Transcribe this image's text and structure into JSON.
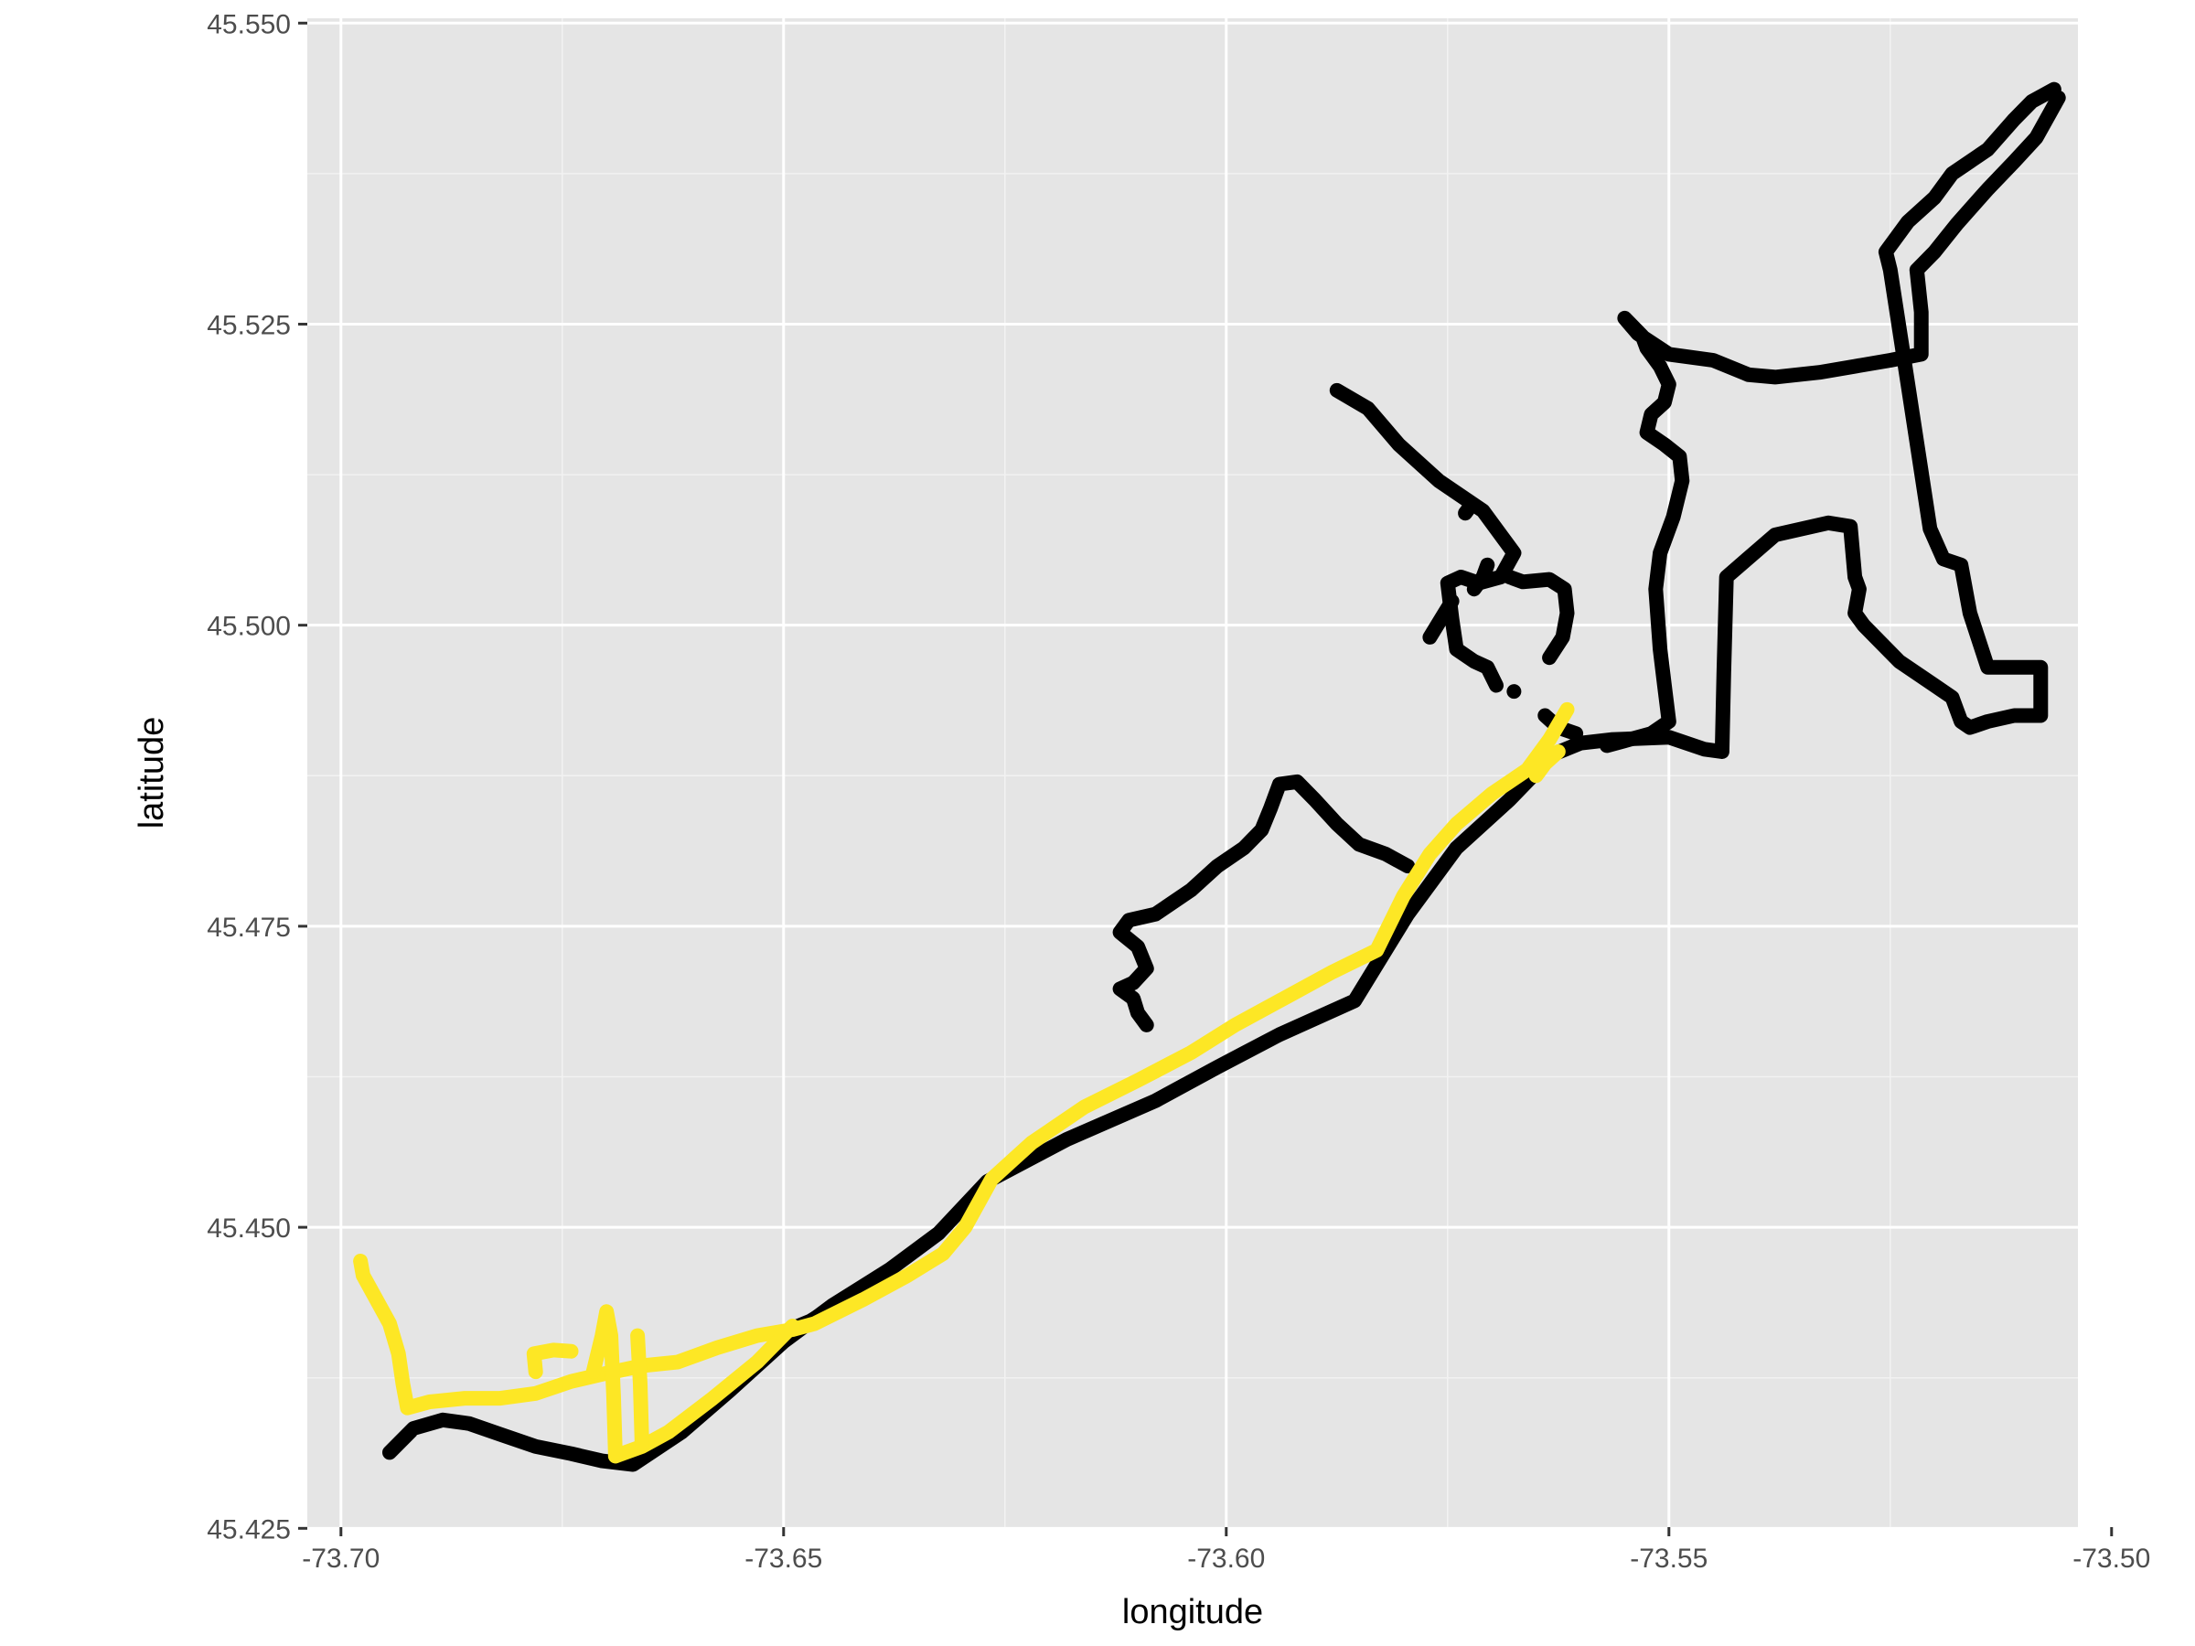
{
  "chart_data": {
    "type": "line",
    "title": "",
    "xlabel": "longitude",
    "ylabel": "latitude",
    "xlim": [
      -73.7038,
      -73.5038
    ],
    "ylim": [
      45.4251,
      45.5504
    ],
    "x_ticks": [
      -73.7,
      -73.65,
      -73.6,
      -73.55,
      -73.5
    ],
    "x_tick_labels": [
      "-73.70",
      "-73.65",
      "-73.60",
      "-73.55",
      "-73.50"
    ],
    "y_ticks": [
      45.425,
      45.45,
      45.475,
      45.5,
      45.525,
      45.55
    ],
    "y_tick_labels": [
      "45.425",
      "45.450",
      "45.475",
      "45.500",
      "45.525",
      "45.550"
    ],
    "grid": true,
    "background": "#e5e5e5",
    "gridline_color": "#ffffff",
    "legend": "none",
    "series": [
      {
        "color": "#000000",
        "segments": [
          [
            [
              -73.6945,
              45.4313
            ],
            [
              -73.6918,
              45.4333
            ],
            [
              -73.6885,
              45.434
            ],
            [
              -73.6855,
              45.4337
            ],
            [
              -73.682,
              45.4328
            ],
            [
              -73.678,
              45.4318
            ],
            [
              -73.674,
              45.4312
            ],
            [
              -73.6705,
              45.4306
            ],
            [
              -73.667,
              45.4303
            ],
            [
              -73.6615,
              45.433
            ],
            [
              -73.656,
              45.4365
            ],
            [
              -73.65,
              45.4405
            ],
            [
              -73.6445,
              45.4435
            ],
            [
              -73.638,
              45.4465
            ],
            [
              -73.6325,
              45.4495
            ],
            [
              -73.627,
              45.4538
            ],
            [
              -73.618,
              45.4573
            ],
            [
              -73.608,
              45.4605
            ],
            [
              -73.601,
              45.4633
            ],
            [
              -73.594,
              45.466
            ],
            [
              -73.5855,
              45.4688
            ],
            [
              -73.5795,
              45.476
            ],
            [
              -73.574,
              45.4815
            ],
            [
              -73.568,
              45.4855
            ],
            [
              -73.563,
              45.4893
            ],
            [
              -73.56,
              45.4902
            ],
            [
              -73.5565,
              45.4905
            ],
            [
              -73.55,
              45.4907
            ],
            [
              -73.546,
              45.4897
            ],
            [
              -73.544,
              45.4895
            ],
            [
              -73.5438,
              45.496
            ],
            [
              -73.5435,
              45.504
            ],
            [
              -73.538,
              45.5075
            ],
            [
              -73.532,
              45.5085
            ],
            [
              -73.5295,
              45.5082
            ],
            [
              -73.529,
              45.504
            ],
            [
              -73.5285,
              45.503
            ],
            [
              -73.529,
              45.501
            ],
            [
              -73.528,
              45.5
            ],
            [
              -73.524,
              45.497
            ],
            [
              -73.52,
              45.495
            ],
            [
              -73.518,
              45.494
            ],
            [
              -73.517,
              45.492
            ],
            [
              -73.516,
              45.4915
            ],
            [
              -73.514,
              45.492
            ],
            [
              -73.511,
              45.4925
            ],
            [
              -73.508,
              45.4925
            ],
            [
              -73.508,
              45.4965
            ],
            [
              -73.511,
              45.4965
            ],
            [
              -73.514,
              45.4965
            ],
            [
              -73.516,
              45.501
            ],
            [
              -73.517,
              45.505
            ],
            [
              -73.519,
              45.5055
            ],
            [
              -73.5205,
              45.508
            ],
            [
              -73.523,
              45.52
            ],
            [
              -73.525,
              45.5295
            ],
            [
              -73.5255,
              45.531
            ],
            [
              -73.523,
              45.5335
            ],
            [
              -73.52,
              45.5355
            ],
            [
              -73.518,
              45.5375
            ],
            [
              -73.514,
              45.5395
            ],
            [
              -73.511,
              45.542
            ],
            [
              -73.509,
              45.5435
            ],
            [
              -73.5065,
              45.5445
            ]
          ],
          [
            [
              -73.506,
              45.5438
            ],
            [
              -73.5085,
              45.5405
            ],
            [
              -73.511,
              45.5385
            ],
            [
              -73.514,
              45.5362
            ],
            [
              -73.5175,
              45.5333
            ],
            [
              -73.52,
              45.531
            ],
            [
              -73.522,
              45.5295
            ],
            [
              -73.5215,
              45.526
            ],
            [
              -73.5215,
              45.5225
            ],
            [
              -73.525,
              45.522
            ],
            [
              -73.529,
              45.5215
            ],
            [
              -73.533,
              45.521
            ],
            [
              -73.538,
              45.5206
            ],
            [
              -73.541,
              45.5208
            ],
            [
              -73.545,
              45.522
            ],
            [
              -73.55,
              45.5225
            ],
            [
              -73.5535,
              45.5242
            ],
            [
              -73.555,
              45.5255
            ],
            [
              -73.553,
              45.524
            ],
            [
              -73.5525,
              45.523
            ],
            [
              -73.551,
              45.5215
            ],
            [
              -73.55,
              45.52
            ],
            [
              -73.5505,
              45.5185
            ],
            [
              -73.552,
              45.5175
            ],
            [
              -73.5525,
              45.516
            ],
            [
              -73.5505,
              45.515
            ],
            [
              -73.5488,
              45.514
            ],
            [
              -73.5485,
              45.512
            ],
            [
              -73.5495,
              45.509
            ],
            [
              -73.551,
              45.506
            ],
            [
              -73.5515,
              45.503
            ],
            [
              -73.551,
              45.498
            ],
            [
              -73.5505,
              45.495
            ],
            [
              -73.55,
              45.492
            ],
            [
              -73.552,
              45.491
            ],
            [
              -73.5545,
              45.4905
            ],
            [
              -73.557,
              45.49
            ]
          ],
          [
            [
              -73.5875,
              45.5195
            ],
            [
              -73.584,
              45.518
            ],
            [
              -73.5805,
              45.515
            ],
            [
              -73.576,
              45.512
            ],
            [
              -73.571,
              45.5095
            ],
            [
              -73.5675,
              45.506
            ],
            [
              -73.569,
              45.504
            ],
            [
              -73.5715,
              45.5035
            ],
            [
              -73.5735,
              45.504
            ],
            [
              -73.575,
              45.5035
            ],
            [
              -73.5745,
              45.5005
            ],
            [
              -73.574,
              45.498
            ],
            [
              -73.572,
              45.497
            ],
            [
              -73.5705,
              45.4965
            ],
            [
              -73.5695,
              45.495
            ]
          ],
          [
            [
              -73.572,
              45.503
            ],
            [
              -73.571,
              45.504
            ],
            [
              -73.5705,
              45.505
            ]
          ],
          [
            [
              -73.5635,
              45.4973
            ],
            [
              -73.562,
              45.499
            ],
            [
              -73.5615,
              45.501
            ],
            [
              -73.5618,
              45.503
            ],
            [
              -73.5635,
              45.5038
            ],
            [
              -73.5665,
              45.5036
            ],
            [
              -73.568,
              45.504
            ]
          ],
          [
            [
              -73.577,
              45.499
            ],
            [
              -73.5755,
              45.5008
            ],
            [
              -73.5745,
              45.502
            ]
          ],
          [
            [
              -73.5675,
              45.4945
            ]
          ],
          [
            [
              -73.573,
              45.5093
            ],
            [
              -73.5725,
              45.5098
            ]
          ],
          [
            [
              -73.564,
              45.4925
            ],
            [
              -73.5625,
              45.4915
            ],
            [
              -73.5605,
              45.491
            ]
          ],
          [
            [
              -73.643,
              45.444
            ],
            [
              -73.647,
              45.4422
            ],
            [
              -73.651,
              45.441
            ]
          ],
          [
            [
              -73.5795,
              45.48
            ],
            [
              -73.582,
              45.481
            ],
            [
              -73.585,
              45.4818
            ],
            [
              -73.5875,
              45.4835
            ],
            [
              -73.59,
              45.4855
            ],
            [
              -73.592,
              45.487
            ],
            [
              -73.594,
              45.4868
            ],
            [
              -73.595,
              45.4848
            ],
            [
              -73.596,
              45.483
            ],
            [
              -73.598,
              45.4815
            ],
            [
              -73.601,
              45.48
            ],
            [
              -73.604,
              45.478
            ],
            [
              -73.608,
              45.476
            ],
            [
              -73.611,
              45.4755
            ],
            [
              -73.612,
              45.4745
            ],
            [
              -73.61,
              45.4733
            ],
            [
              -73.609,
              45.4715
            ],
            [
              -73.6105,
              45.4703
            ],
            [
              -73.612,
              45.4698
            ],
            [
              -73.6105,
              45.469
            ],
            [
              -73.61,
              45.4678
            ],
            [
              -73.609,
              45.4668
            ]
          ]
        ]
      },
      {
        "color": "#fde725",
        "segments": [
          [
            [
              -73.6978,
              45.4472
            ],
            [
              -73.6975,
              45.446
            ],
            [
              -73.696,
              45.444
            ],
            [
              -73.6945,
              45.442
            ],
            [
              -73.6935,
              45.4395
            ],
            [
              -73.693,
              45.437
            ],
            [
              -73.6925,
              45.435
            ],
            [
              -73.69,
              45.4355
            ],
            [
              -73.686,
              45.4358
            ],
            [
              -73.682,
              45.4358
            ],
            [
              -73.678,
              45.4362
            ],
            [
              -73.674,
              45.4372
            ],
            [
              -73.6705,
              45.4378
            ],
            [
              -73.666,
              45.4385
            ],
            [
              -73.662,
              45.4388
            ],
            [
              -73.6575,
              45.44
            ],
            [
              -73.653,
              45.441
            ],
            [
              -73.649,
              45.4415
            ],
            [
              -73.6465,
              45.442
            ],
            [
              -73.641,
              45.444
            ],
            [
              -73.636,
              45.446
            ],
            [
              -73.632,
              45.4478
            ],
            [
              -73.6295,
              45.45
            ],
            [
              -73.6265,
              45.454
            ],
            [
              -73.622,
              45.457
            ],
            [
              -73.616,
              45.46
            ],
            [
              -73.61,
              45.4622
            ],
            [
              -73.604,
              45.4645
            ],
            [
              -73.599,
              45.4668
            ],
            [
              -73.593,
              45.4692
            ],
            [
              -73.588,
              45.4712
            ],
            [
              -73.583,
              45.473
            ],
            [
              -73.58,
              45.4775
            ],
            [
              -73.577,
              45.481
            ],
            [
              -73.574,
              45.4835
            ],
            [
              -73.57,
              45.486
            ],
            [
              -73.566,
              45.488
            ],
            [
              -73.5635,
              45.4905
            ],
            [
              -73.5615,
              45.493
            ]
          ],
          [
            [
              -73.669,
              45.431
            ],
            [
              -73.666,
              45.4318
            ],
            [
              -73.663,
              45.433
            ],
            [
              -73.658,
              45.4358
            ],
            [
              -73.653,
              45.4388
            ],
            [
              -73.649,
              45.4418
            ]
          ],
          [
            [
              -73.669,
              45.431
            ],
            [
              -73.6692,
              45.436
            ],
            [
              -73.6695,
              45.441
            ],
            [
              -73.67,
              45.443
            ],
            [
              -73.6705,
              45.441
            ],
            [
              -73.6715,
              45.438
            ]
          ],
          [
            [
              -73.666,
              45.432
            ],
            [
              -73.6662,
              45.437
            ],
            [
              -73.6665,
              45.441
            ]
          ],
          [
            [
              -73.678,
              45.438
            ],
            [
              -73.6782,
              45.4395
            ],
            [
              -73.676,
              45.4398
            ],
            [
              -73.674,
              45.4397
            ]
          ],
          [
            [
              -73.565,
              45.4875
            ],
            [
              -73.564,
              45.4885
            ],
            [
              -73.5625,
              45.4895
            ]
          ]
        ]
      }
    ]
  }
}
